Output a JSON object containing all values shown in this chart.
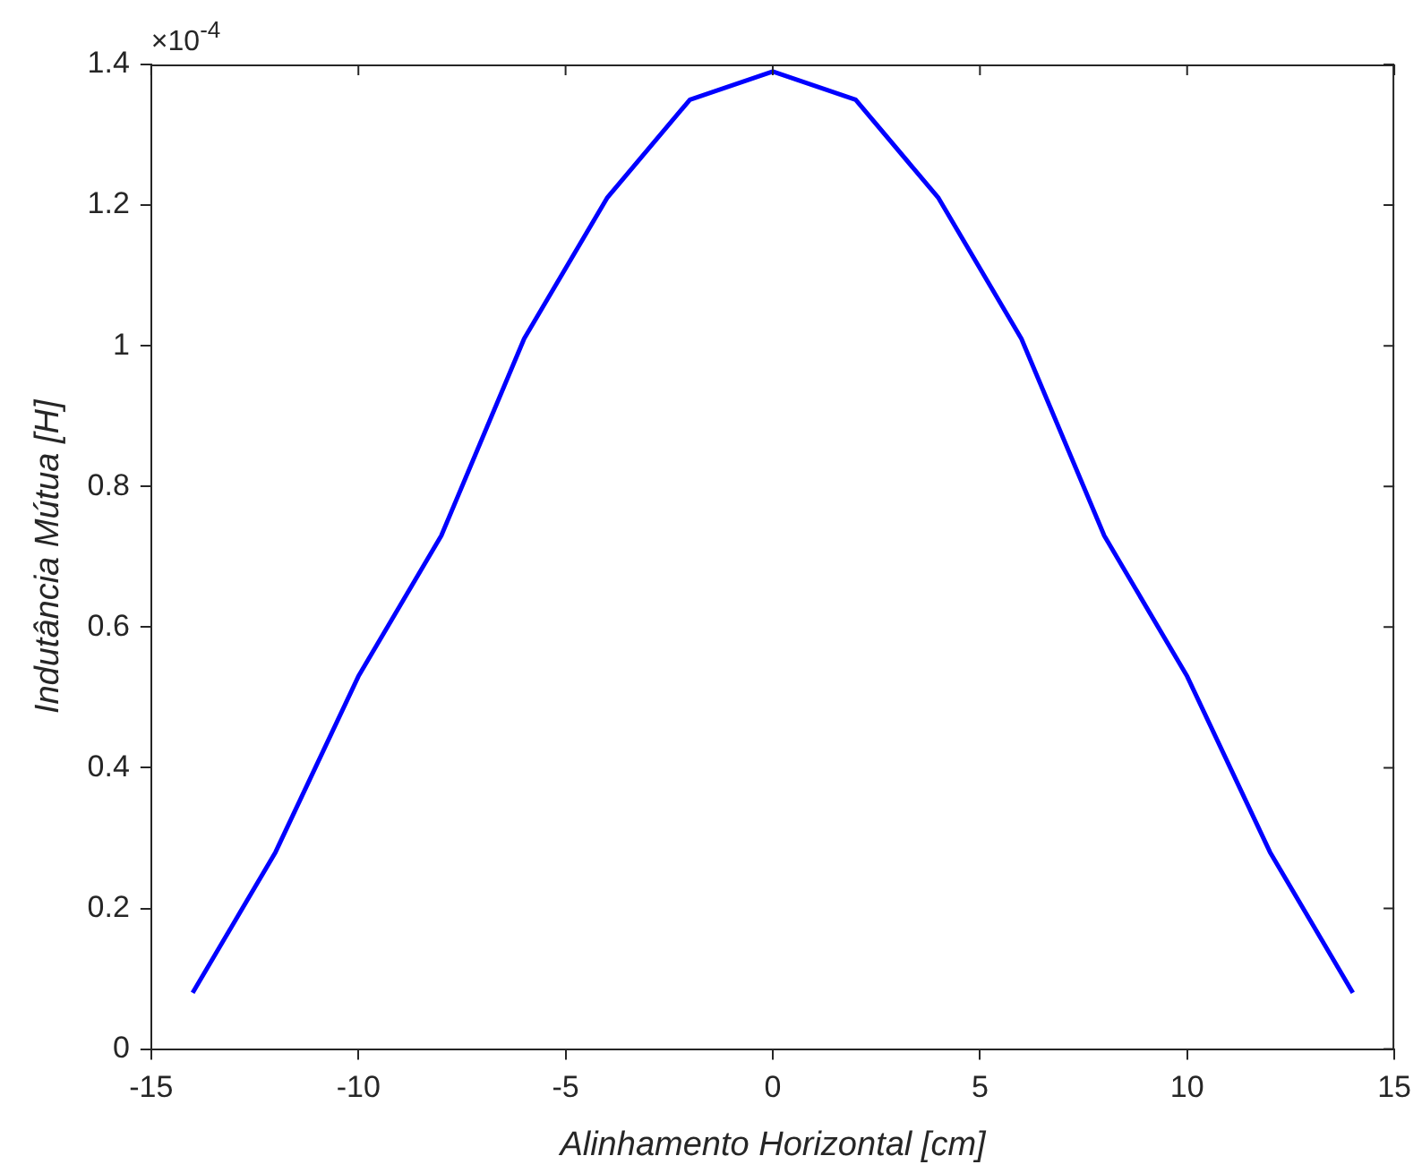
{
  "chart_data": {
    "type": "line",
    "xlabel": "Alinhamento Horizontal [cm]",
    "ylabel": "Indutância Mútua [H]",
    "x": [
      -14,
      -12,
      -10,
      -8,
      -6,
      -4,
      -2,
      0,
      2,
      4,
      6,
      8,
      10,
      12,
      14
    ],
    "series": [
      {
        "color": "#0000ff",
        "values": [
          0.08,
          0.28,
          0.53,
          0.73,
          1.01,
          1.21,
          1.35,
          1.39,
          1.35,
          1.21,
          1.01,
          0.73,
          0.53,
          0.28,
          0.08
        ]
      }
    ],
    "xlim": [
      -15,
      15
    ],
    "xticks": [
      -15,
      -10,
      -5,
      0,
      5,
      10,
      15
    ],
    "ylim": [
      0,
      1.4
    ],
    "yticks": [
      0,
      0.2,
      0.4,
      0.6,
      0.8,
      1,
      1.2,
      1.4
    ],
    "annotations": [
      "×10$^{-4}$"
    ],
    "grid": false,
    "legend": false,
    "marker": "none",
    "line_style": "solid"
  }
}
